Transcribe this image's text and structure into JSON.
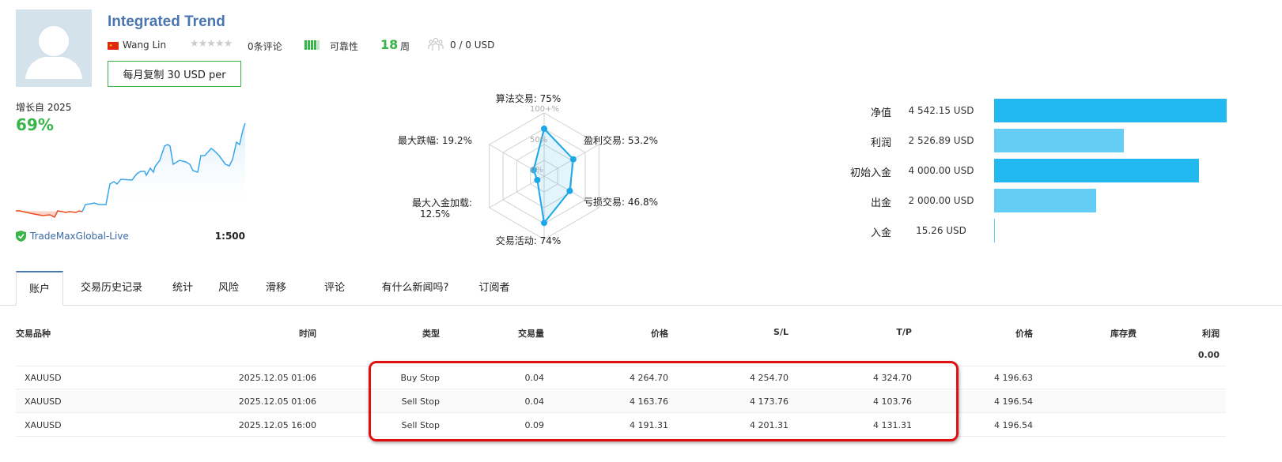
{
  "header": {
    "title": "Integrated Trend",
    "author": "Wang Lin",
    "reviews": "0条评论",
    "rating_stars": 0,
    "reliability_label": "可靠性",
    "reliability_level": 4,
    "weeks_value": "18",
    "weeks_unit": "周",
    "subscribers": "0 / 0 USD",
    "copy_button": "每月复制 30 USD per"
  },
  "growth": {
    "label": "增长自 2025",
    "value": "69%",
    "server": "TradeMaxGlobal-Live",
    "leverage": "1:500"
  },
  "radar": {
    "scale_labels": [
      "100+%",
      "50%",
      "0%"
    ],
    "axes": [
      {
        "label": "算法交易: 75%",
        "value": 75
      },
      {
        "label": "盈利交易: 53.2%",
        "value": 53.2
      },
      {
        "label": "亏损交易: 46.8%",
        "value": 46.8
      },
      {
        "label": "交易活动: 74%",
        "value": 74
      },
      {
        "label_line1": "最大入金加载:",
        "label_line2": "12.5%",
        "value": 12.5
      },
      {
        "label": "最大跌幅: 19.2%",
        "value": 19.2
      }
    ]
  },
  "balance": [
    {
      "label": "净值",
      "value": "4 542.15 USD",
      "amount": 4542.15,
      "color": "#22b8f0"
    },
    {
      "label": "利润",
      "value": "2 526.89 USD",
      "amount": 2526.89,
      "color": "#63cdf5"
    },
    {
      "label": "初始入金",
      "value": "4 000.00 USD",
      "amount": 4000,
      "color": "#22b8f0"
    },
    {
      "label": "出金",
      "value": "2 000.00 USD",
      "amount": 2000,
      "color": "#63cdf5"
    },
    {
      "label": "入金",
      "value": "15.26 USD",
      "amount": 15.26,
      "color": "#63cdf5"
    }
  ],
  "tabs": [
    "账户",
    "交易历史记录",
    "统计",
    "风险",
    "滑移",
    "评论",
    "有什么新闻吗?",
    "订阅者"
  ],
  "table": {
    "headers": [
      "交易品种",
      "时间",
      "类型",
      "交易量",
      "价格",
      "S/L",
      "T/P",
      "价格",
      "库存费",
      "利润"
    ],
    "total_profit": "0.00",
    "rows": [
      [
        "XAUUSD",
        "2025.12.05 01:06",
        "Buy Stop",
        "0.04",
        "4 264.70",
        "4 254.70",
        "4 324.70",
        "4 196.63",
        "",
        ""
      ],
      [
        "XAUUSD",
        "2025.12.05 01:06",
        "Sell Stop",
        "0.04",
        "4 163.76",
        "4 173.76",
        "4 103.76",
        "4 196.54",
        "",
        ""
      ],
      [
        "XAUUSD",
        "2025.12.05 16:00",
        "Sell Stop",
        "0.09",
        "4 191.31",
        "4 201.31",
        "4 131.31",
        "4 196.54",
        "",
        ""
      ]
    ]
  },
  "colors": {
    "title": "#4a76b0",
    "green": "#39b54a",
    "radar": "#1aa8e8",
    "highlight": "#e01010"
  }
}
